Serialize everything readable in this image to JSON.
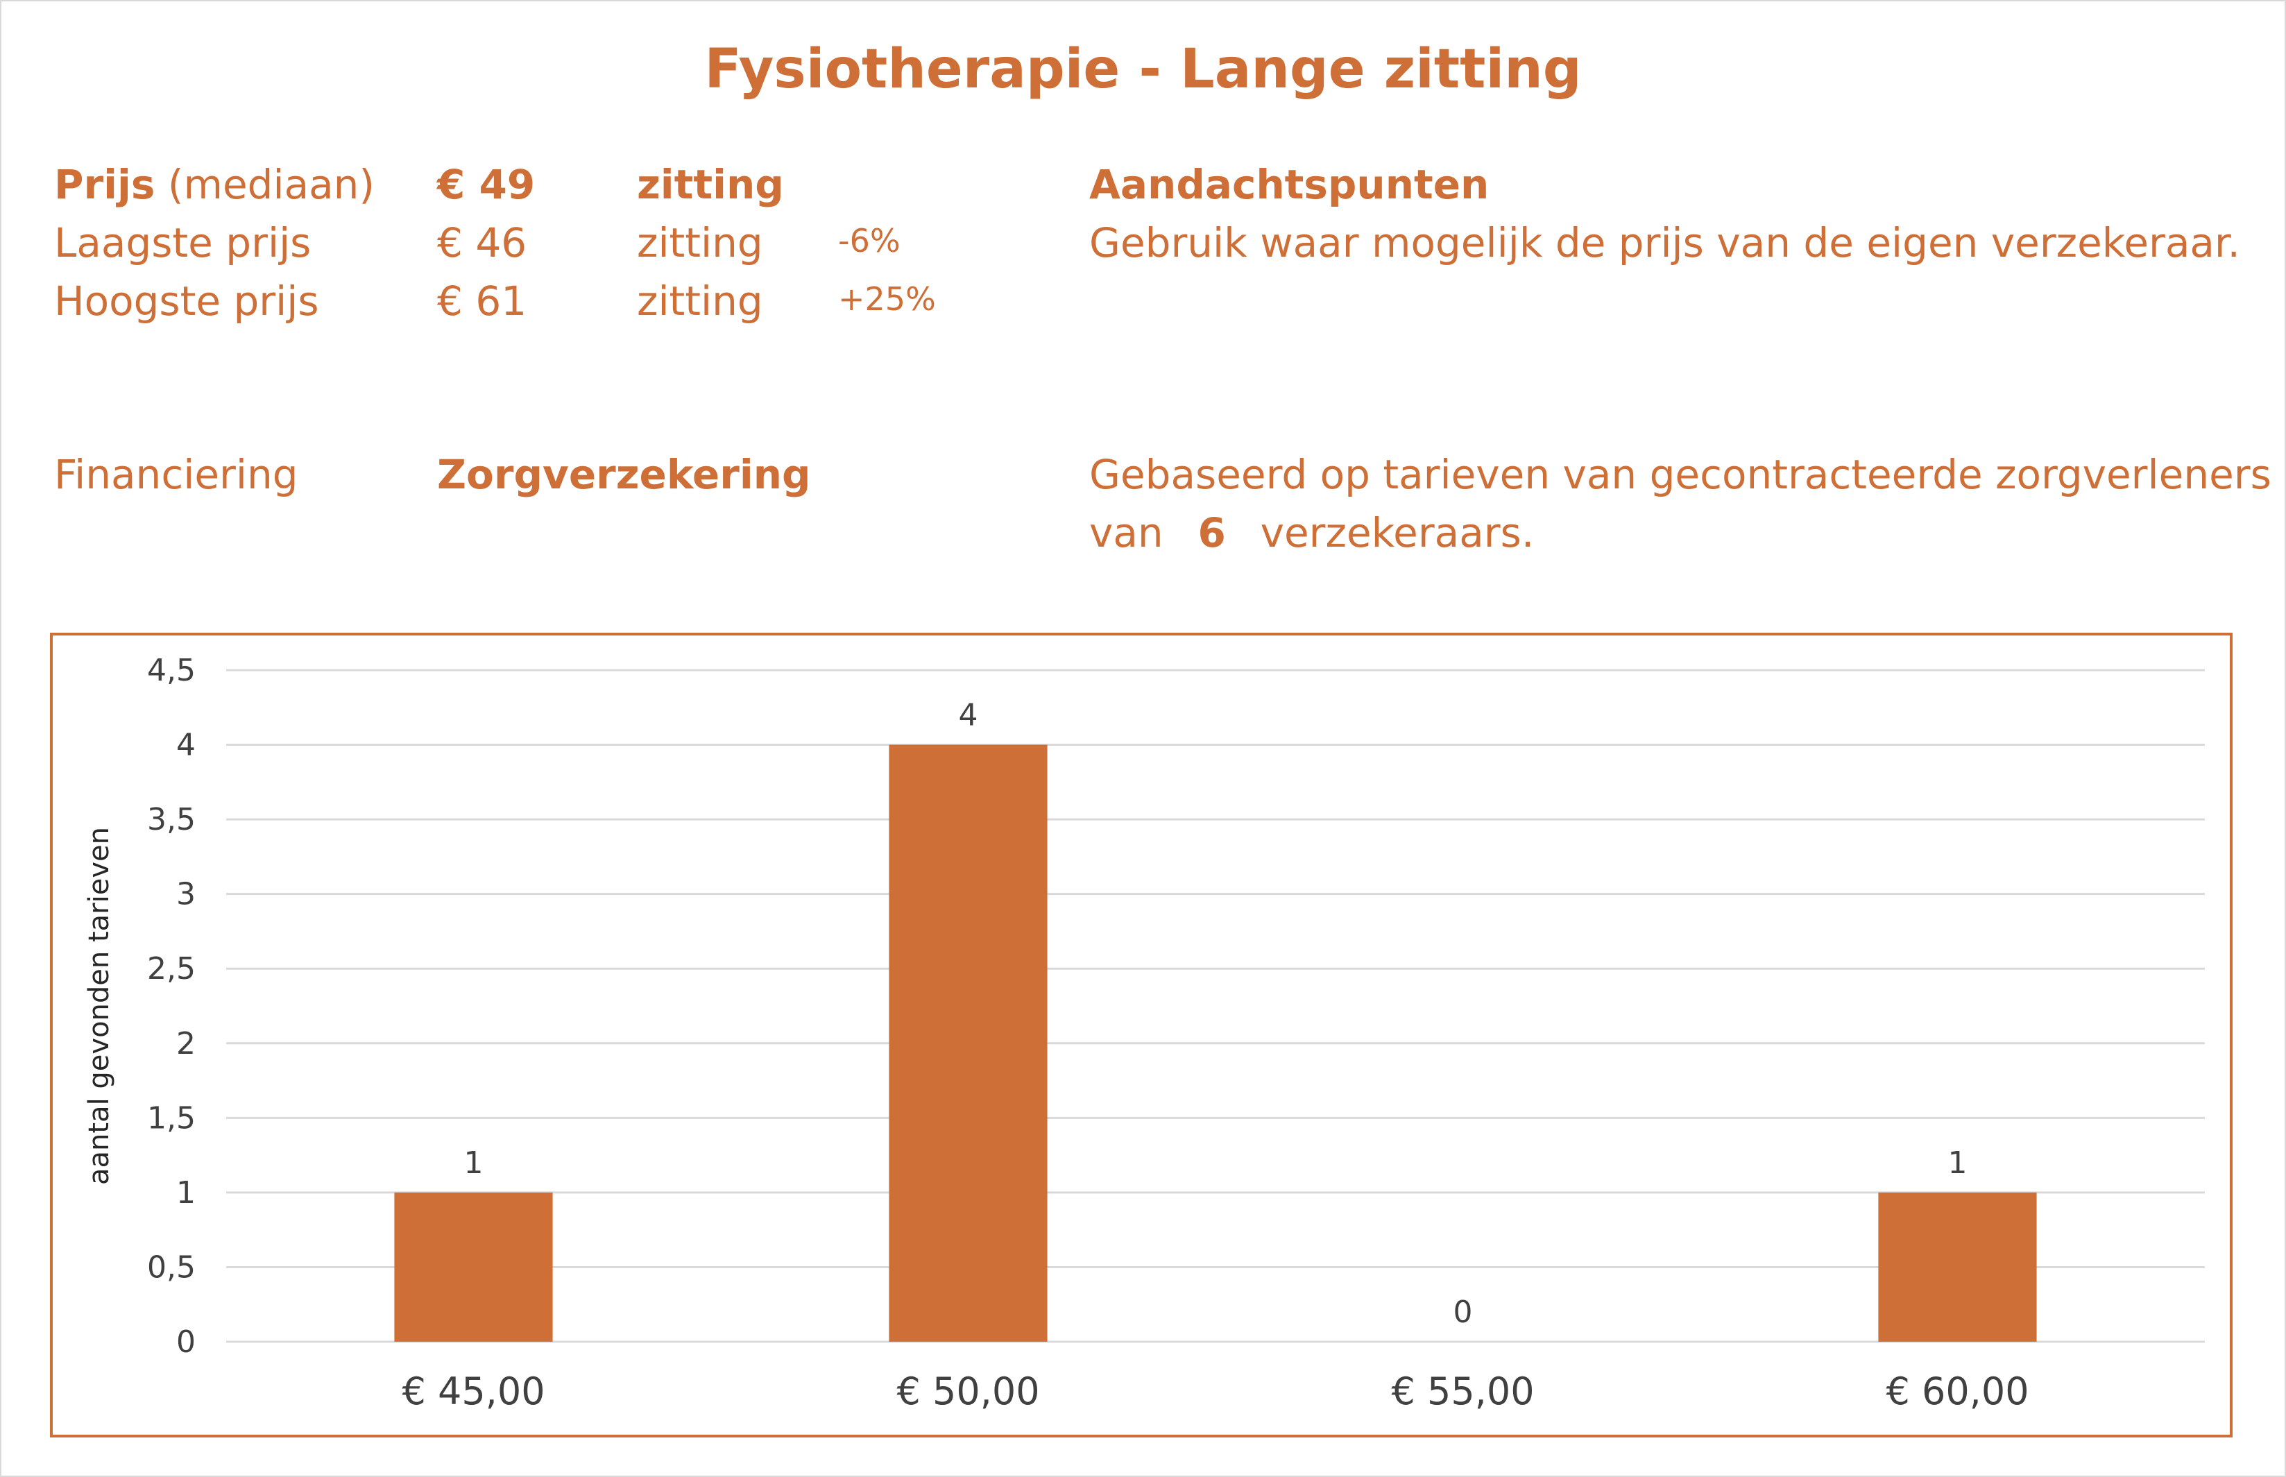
{
  "title": "Fysiotherapie - Lange zitting",
  "prices": {
    "median": {
      "label_bold": "Prijs",
      "label_rest": "(mediaan)",
      "value": "€ 49",
      "unit": "zitting"
    },
    "lowest": {
      "label": "Laagste prijs",
      "value": "€ 46",
      "unit": "zitting",
      "pct": "-6%"
    },
    "highest": {
      "label": "Hoogste prijs",
      "value": "€ 61",
      "unit": "zitting",
      "pct": "+25%"
    }
  },
  "attention": {
    "heading": "Aandachtspunten",
    "text": "Gebruik waar mogelijk de prijs van de eigen verzekeraar."
  },
  "financing": {
    "label": "Financiering",
    "value": "Zorgverzekering"
  },
  "basis": {
    "line1": "Gebaseerd op tarieven van gecontracteerde zorgverleners",
    "line2_pre": "van",
    "count": "6",
    "line2_post": "verzekeraars."
  },
  "colors": {
    "accent": "#cd6f37",
    "bar": "#cd6f37",
    "grid": "#d9d9d9",
    "text": "#404040"
  },
  "chart_data": {
    "type": "bar",
    "categories": [
      "€ 45,00",
      "€ 50,00",
      "€ 55,00",
      "€ 60,00"
    ],
    "values": [
      1,
      4,
      0,
      1
    ],
    "data_labels": [
      "1",
      "4",
      "0",
      "1"
    ],
    "ylabel": "aantal gevonden tarieven",
    "xlabel": "",
    "ylim": [
      0,
      4.5
    ],
    "ytick_values": [
      0,
      0.5,
      1,
      1.5,
      2,
      2.5,
      3,
      3.5,
      4,
      4.5
    ],
    "ytick_labels": [
      "0",
      "0,5",
      "1",
      "1,5",
      "2",
      "2,5",
      "3",
      "3,5",
      "4",
      "4,5"
    ],
    "grid": true,
    "legend": "none"
  }
}
